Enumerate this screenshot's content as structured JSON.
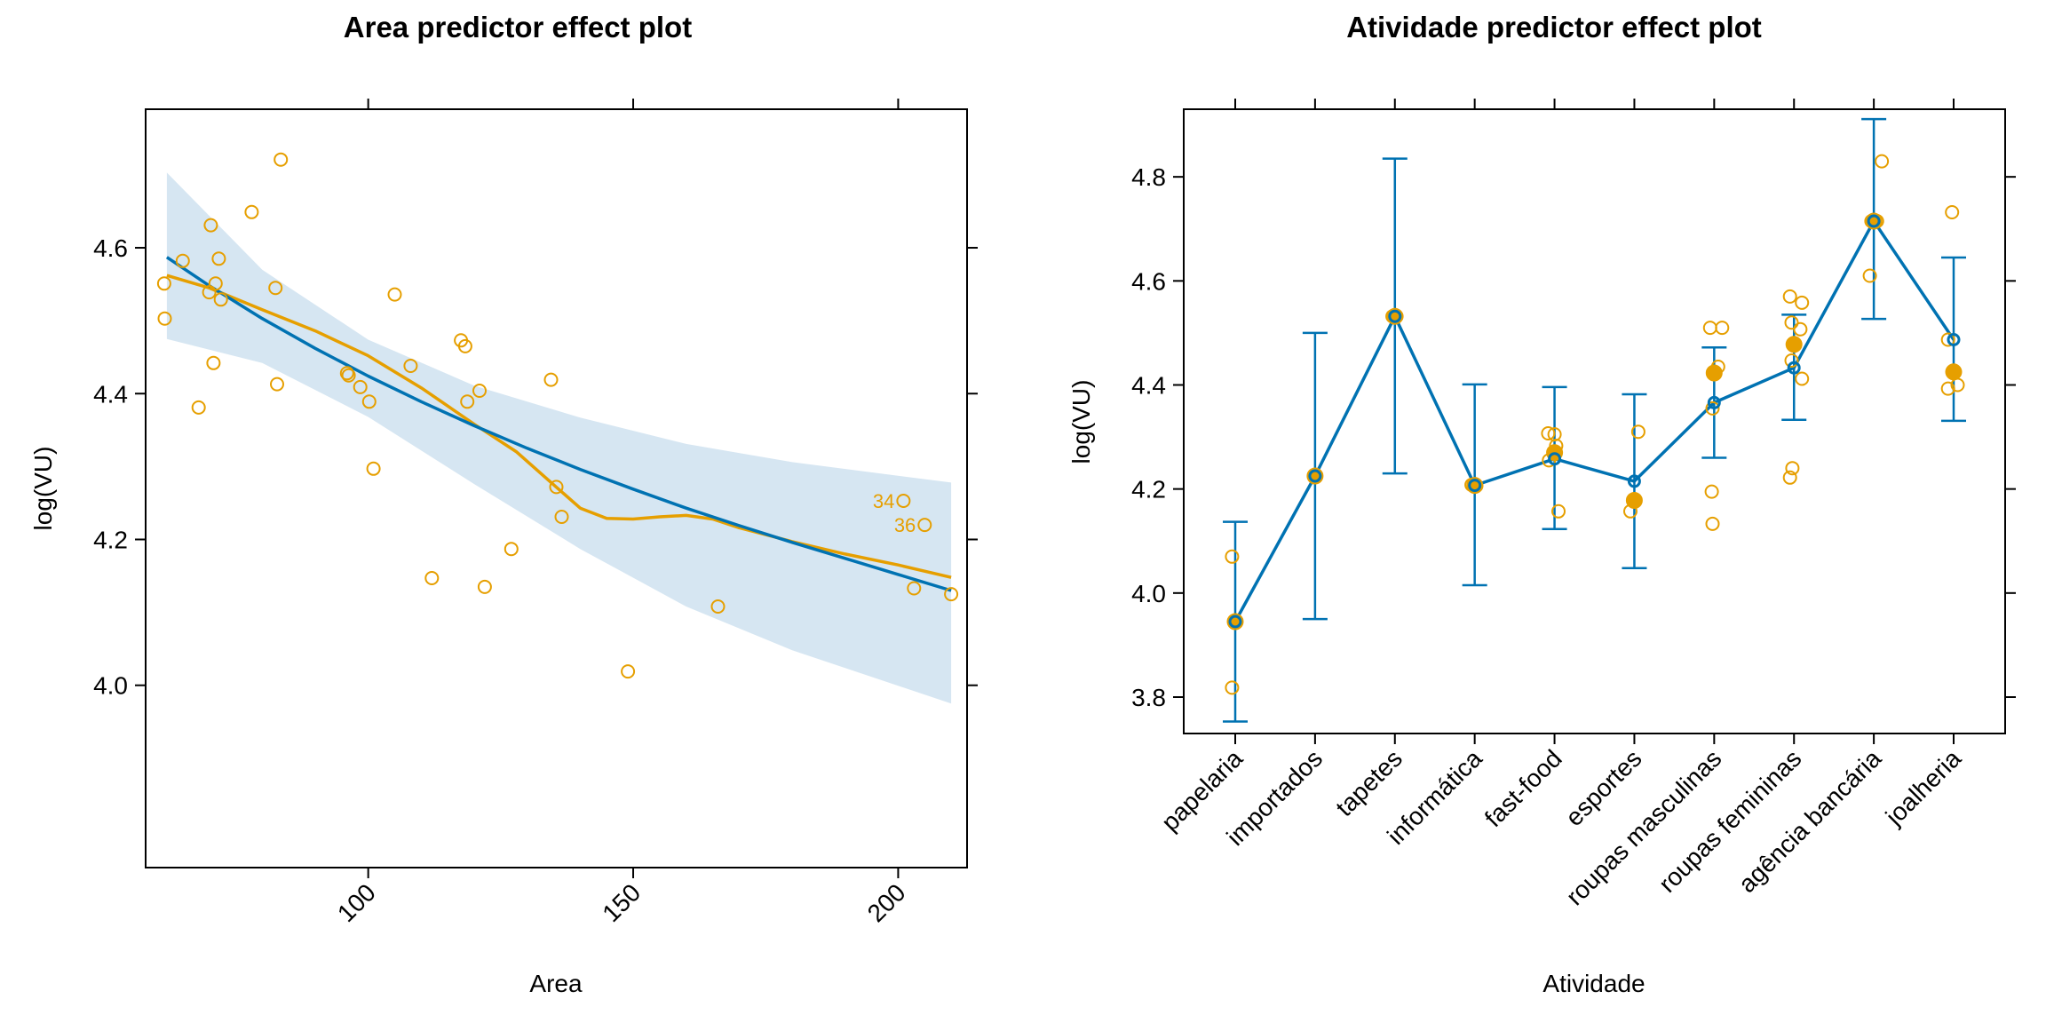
{
  "colors": {
    "effect_line": "#0072B2",
    "band": "#D6E6F2",
    "points": "#E69F00",
    "axis": "#000000"
  },
  "chart_data": [
    {
      "type": "line",
      "title": "Area predictor effect plot",
      "xlabel": "Area",
      "ylabel": "log(VU)",
      "xlim": [
        58,
        213
      ],
      "ylim": [
        3.75,
        4.79
      ],
      "xticks": [
        100,
        150,
        200
      ],
      "xtick_labels": [
        "100",
        "150",
        "200"
      ],
      "yticks": [
        4.0,
        4.2,
        4.4,
        4.6
      ],
      "ytick_labels": [
        "4.0",
        "4.2",
        "4.4",
        "4.6"
      ],
      "fit": {
        "x": [
          62,
          70,
          80,
          90,
          100,
          110,
          120,
          130,
          140,
          150,
          160,
          170,
          180,
          190,
          200,
          210
        ],
        "y": [
          4.587,
          4.548,
          4.503,
          4.462,
          4.424,
          4.389,
          4.356,
          4.325,
          4.296,
          4.269,
          4.243,
          4.219,
          4.196,
          4.174,
          4.152,
          4.13
        ]
      },
      "band": {
        "x": [
          62,
          80,
          100,
          120,
          140,
          160,
          180,
          210
        ],
        "lower": [
          4.475,
          4.442,
          4.368,
          4.276,
          4.187,
          4.108,
          4.048,
          3.975
        ],
        "upper": [
          4.703,
          4.57,
          4.474,
          4.411,
          4.367,
          4.331,
          4.306,
          4.278
        ]
      },
      "smooth": {
        "x": [
          62,
          70,
          80,
          90,
          100,
          110,
          120,
          128,
          135,
          140,
          145,
          150,
          155,
          160,
          165,
          170,
          180,
          190,
          200,
          210
        ],
        "y": [
          4.562,
          4.545,
          4.515,
          4.486,
          4.452,
          4.408,
          4.358,
          4.32,
          4.275,
          4.243,
          4.229,
          4.228,
          4.231,
          4.233,
          4.228,
          4.216,
          4.197,
          4.18,
          4.165,
          4.148
        ]
      },
      "points": {
        "x": [
          61.5,
          61.6,
          65,
          68,
          70,
          70.3,
          70.8,
          71.2,
          71.8,
          72.2,
          78,
          82.5,
          82.8,
          83.5,
          96,
          96.3,
          98.5,
          100.2,
          101,
          105,
          108,
          112,
          117.5,
          118.3,
          118.7,
          121,
          122,
          127,
          134.5,
          135.5,
          136.5,
          149,
          166,
          201,
          203,
          205,
          210
        ],
        "y": [
          4.551,
          4.503,
          4.582,
          4.381,
          4.539,
          4.631,
          4.442,
          4.551,
          4.585,
          4.529,
          4.649,
          4.545,
          4.413,
          4.721,
          4.428,
          4.425,
          4.409,
          4.389,
          4.297,
          4.536,
          4.438,
          4.147,
          4.473,
          4.465,
          4.389,
          4.404,
          4.135,
          4.187,
          4.419,
          4.272,
          4.231,
          4.019,
          4.108,
          4.253,
          4.133,
          4.22,
          4.125
        ]
      },
      "point_labels": [
        {
          "text": "34",
          "x": 201,
          "y": 4.253
        },
        {
          "text": "36",
          "x": 205,
          "y": 4.22
        }
      ]
    },
    {
      "type": "line",
      "title": "Atividade predictor effect plot",
      "xlabel": "Atividade",
      "ylabel": "log(VU)",
      "ylim": [
        3.73,
        4.93
      ],
      "yticks": [
        3.8,
        4.0,
        4.2,
        4.4,
        4.6,
        4.8
      ],
      "ytick_labels": [
        "3.8",
        "4.0",
        "4.2",
        "4.4",
        "4.6",
        "4.8"
      ],
      "categories": [
        "papelaria",
        "importados",
        "tapetes",
        "informática",
        "fast-food",
        "esportes",
        "roupas masculinas",
        "roupas femininas",
        "agência bancária",
        "joalheria"
      ],
      "estimates": [
        3.945,
        4.225,
        4.532,
        4.207,
        4.258,
        4.215,
        4.366,
        4.433,
        4.715,
        4.487
      ],
      "lower": [
        3.753,
        3.95,
        4.23,
        4.015,
        4.123,
        4.048,
        4.26,
        4.333,
        4.527,
        4.331
      ],
      "upper": [
        4.137,
        4.5,
        4.835,
        4.401,
        4.396,
        4.382,
        4.472,
        4.535,
        4.911,
        4.645
      ],
      "group_means": [
        3.945,
        4.225,
        4.532,
        4.207,
        4.27,
        4.178,
        4.423,
        4.478,
        4.715,
        4.425
      ],
      "observations": [
        {
          "x": 0.96,
          "y": 4.07
        },
        {
          "x": 0.96,
          "y": 3.818
        },
        {
          "x": 1.0,
          "y": 3.945
        },
        {
          "x": 2.0,
          "y": 4.225
        },
        {
          "x": 2.97,
          "y": 4.532
        },
        {
          "x": 3.02,
          "y": 4.532
        },
        {
          "x": 3.96,
          "y": 4.208
        },
        {
          "x": 4.02,
          "y": 4.206
        },
        {
          "x": 4.92,
          "y": 4.307
        },
        {
          "x": 5.0,
          "y": 4.305
        },
        {
          "x": 4.93,
          "y": 4.255
        },
        {
          "x": 5.05,
          "y": 4.157
        },
        {
          "x": 5.02,
          "y": 4.283
        },
        {
          "x": 5.95,
          "y": 4.157
        },
        {
          "x": 6.05,
          "y": 4.31
        },
        {
          "x": 6.95,
          "y": 4.51
        },
        {
          "x": 7.1,
          "y": 4.51
        },
        {
          "x": 7.05,
          "y": 4.435
        },
        {
          "x": 6.98,
          "y": 4.355
        },
        {
          "x": 6.97,
          "y": 4.195
        },
        {
          "x": 6.98,
          "y": 4.133
        },
        {
          "x": 7.95,
          "y": 4.57
        },
        {
          "x": 8.1,
          "y": 4.558
        },
        {
          "x": 7.97,
          "y": 4.52
        },
        {
          "x": 8.08,
          "y": 4.507
        },
        {
          "x": 7.97,
          "y": 4.447
        },
        {
          "x": 8.1,
          "y": 4.412
        },
        {
          "x": 7.98,
          "y": 4.24
        },
        {
          "x": 7.95,
          "y": 4.222
        },
        {
          "x": 8.95,
          "y": 4.61
        },
        {
          "x": 9.1,
          "y": 4.83
        },
        {
          "x": 8.97,
          "y": 4.715
        },
        {
          "x": 9.04,
          "y": 4.715
        },
        {
          "x": 9.98,
          "y": 4.732
        },
        {
          "x": 9.93,
          "y": 4.487
        },
        {
          "x": 9.93,
          "y": 4.393
        },
        {
          "x": 10.05,
          "y": 4.4
        }
      ]
    }
  ]
}
